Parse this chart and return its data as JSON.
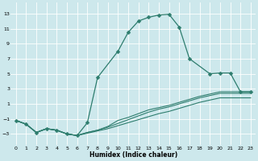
{
  "xlabel": "Humidex (Indice chaleur)",
  "xlim": [
    -0.5,
    23.5
  ],
  "ylim": [
    -4.5,
    14.5
  ],
  "xticks": [
    0,
    1,
    2,
    3,
    4,
    5,
    6,
    7,
    8,
    9,
    10,
    11,
    12,
    13,
    14,
    15,
    16,
    17,
    18,
    19,
    20,
    21,
    22,
    23
  ],
  "yticks": [
    -3,
    -1,
    1,
    3,
    5,
    7,
    9,
    11,
    13
  ],
  "bg_color": "#cde8ec",
  "line_color": "#2e7d6e",
  "grid_color": "#ffffff",
  "main_x": [
    0,
    1,
    2,
    3,
    4,
    5,
    6,
    7,
    8,
    10,
    11,
    12,
    13,
    14,
    15,
    16,
    17,
    19,
    20,
    21,
    22,
    23
  ],
  "main_y": [
    -1.2,
    -1.7,
    -2.8,
    -2.3,
    -2.5,
    -3.0,
    -3.2,
    -1.5,
    4.5,
    8.0,
    10.5,
    12.0,
    12.5,
    12.8,
    12.9,
    11.2,
    7.0,
    5.0,
    5.1,
    5.1,
    2.6,
    2.6
  ],
  "line2_x": [
    0,
    1,
    2,
    3,
    4,
    5,
    6,
    7,
    8,
    9,
    10,
    11,
    12,
    13,
    14,
    15,
    16,
    17,
    18,
    19,
    20,
    21,
    22,
    23
  ],
  "line2_y": [
    -1.2,
    -1.7,
    -2.8,
    -2.3,
    -2.5,
    -3.0,
    -3.2,
    -2.8,
    -2.5,
    -2.0,
    -1.2,
    -0.8,
    -0.3,
    0.2,
    0.5,
    0.8,
    1.2,
    1.6,
    2.0,
    2.3,
    2.6,
    2.6,
    2.6,
    2.6
  ],
  "line3_x": [
    0,
    1,
    2,
    3,
    4,
    5,
    6,
    7,
    8,
    9,
    10,
    11,
    12,
    13,
    14,
    15,
    16,
    17,
    18,
    19,
    20,
    21,
    22,
    23
  ],
  "line3_y": [
    -1.2,
    -1.7,
    -2.8,
    -2.3,
    -2.5,
    -3.0,
    -3.2,
    -2.8,
    -2.5,
    -2.1,
    -1.6,
    -1.1,
    -0.6,
    -0.1,
    0.3,
    0.6,
    1.0,
    1.4,
    1.8,
    2.1,
    2.4,
    2.4,
    2.4,
    2.4
  ],
  "line4_x": [
    0,
    1,
    2,
    3,
    4,
    5,
    6,
    7,
    8,
    9,
    10,
    11,
    12,
    13,
    14,
    15,
    16,
    17,
    18,
    19,
    20,
    21,
    22,
    23
  ],
  "line4_y": [
    -1.2,
    -1.7,
    -2.8,
    -2.3,
    -2.5,
    -3.0,
    -3.2,
    -2.9,
    -2.6,
    -2.3,
    -1.9,
    -1.5,
    -1.1,
    -0.7,
    -0.3,
    0.0,
    0.4,
    0.8,
    1.2,
    1.5,
    1.8,
    1.8,
    1.8,
    1.8
  ]
}
